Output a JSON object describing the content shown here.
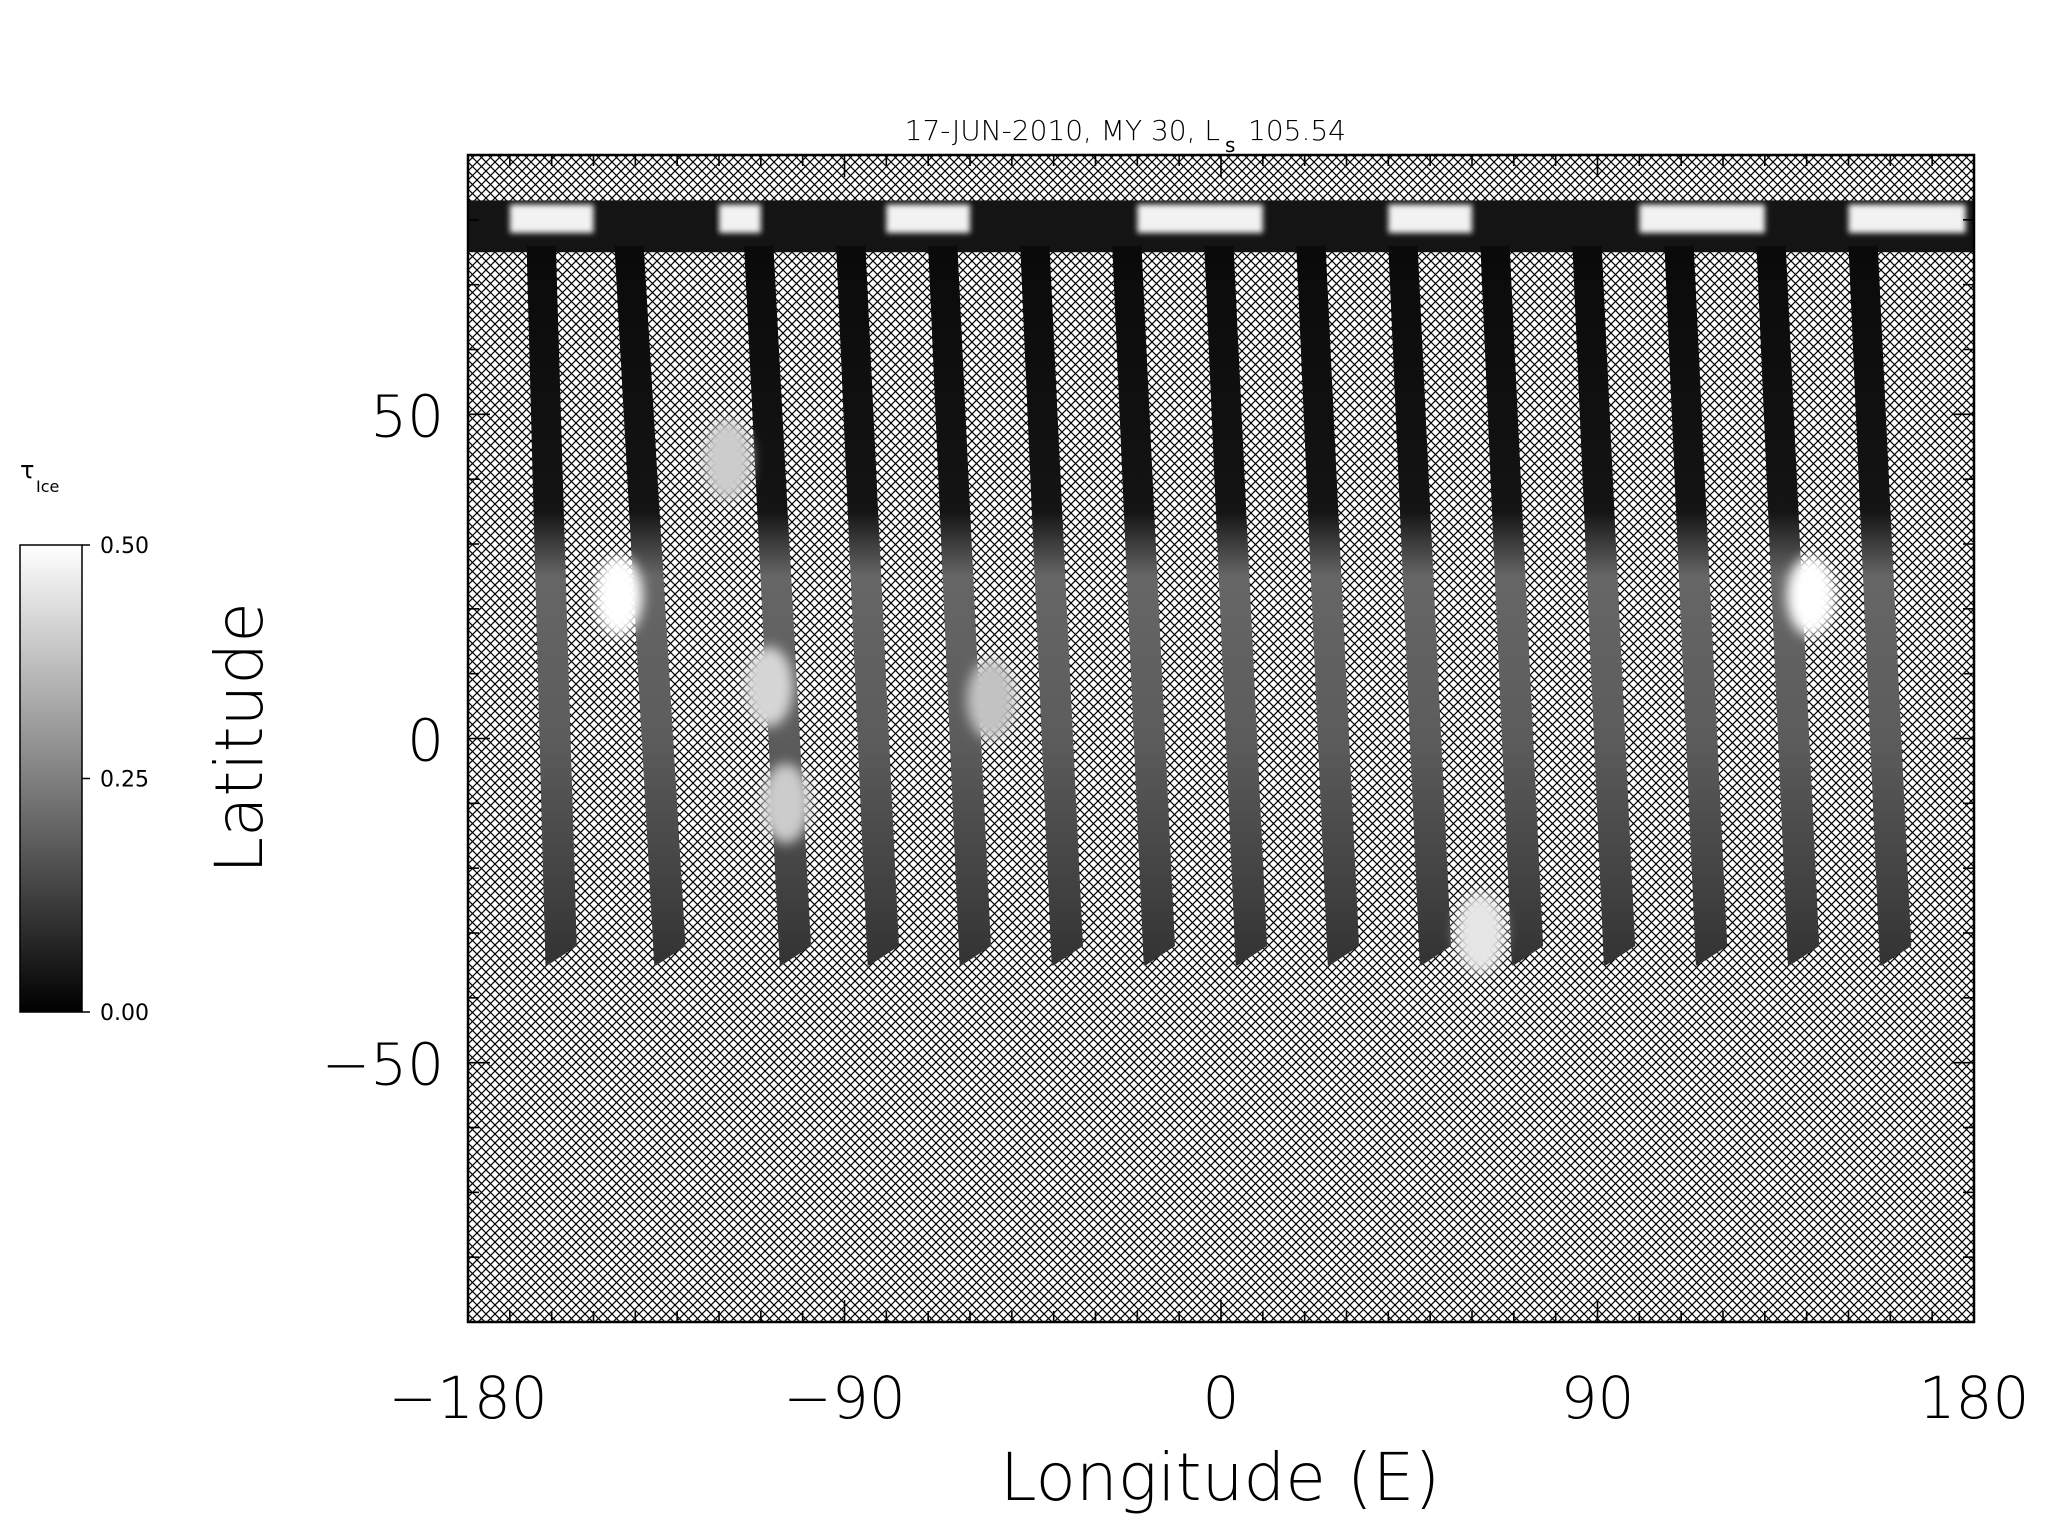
{
  "chart_data": {
    "type": "heatmap",
    "title": "17-JUN-2010, MY 30,  L",
    "title_subscript": "s",
    "title_value": "105.54",
    "xlabel": "Longitude (E)",
    "ylabel": "Latitude",
    "xlim": [
      -180,
      180
    ],
    "ylim": [
      -90,
      90
    ],
    "x_ticks": [
      -180,
      -90,
      0,
      90,
      180
    ],
    "x_tick_labels": [
      "−180",
      "−90",
      "0",
      "90",
      "180"
    ],
    "y_ticks": [
      -50,
      0,
      50
    ],
    "y_tick_labels": [
      "−50",
      "0",
      "50"
    ],
    "colorbar": {
      "label": "τ",
      "label_subscript": "Ice",
      "ticks": [
        0.0,
        0.25,
        0.5
      ],
      "tick_labels": [
        "0.00",
        "0.25",
        "0.50"
      ],
      "colormap": "grayscale",
      "low_color": "#000000",
      "high_color": "#ffffff"
    },
    "no_data_pattern": "crosshatch",
    "polar_cap_lat_range": [
      75,
      83
    ],
    "swaths": [
      {
        "lon_top": -166,
        "lon_bottom": -161,
        "peak_lat": 25
      },
      {
        "lon_top": -145,
        "lon_bottom": -135,
        "peak_lat": 22
      },
      {
        "lon_top": -114,
        "lon_bottom": -105,
        "peak_lat": 10
      },
      {
        "lon_top": -92,
        "lon_bottom": -84,
        "peak_lat": 12
      },
      {
        "lon_top": -70,
        "lon_bottom": -62,
        "peak_lat": 8
      },
      {
        "lon_top": -48,
        "lon_bottom": -40,
        "peak_lat": 24
      },
      {
        "lon_top": -26,
        "lon_bottom": -18,
        "peak_lat": 22
      },
      {
        "lon_top": -4,
        "lon_bottom": 4,
        "peak_lat": 26
      },
      {
        "lon_top": 18,
        "lon_bottom": 26,
        "peak_lat": 20
      },
      {
        "lon_top": 40,
        "lon_bottom": 48,
        "peak_lat": -28
      },
      {
        "lon_top": 62,
        "lon_bottom": 70,
        "peak_lat": 22
      },
      {
        "lon_top": 84,
        "lon_bottom": 92,
        "peak_lat": 18
      },
      {
        "lon_top": 106,
        "lon_bottom": 114,
        "peak_lat": 22
      },
      {
        "lon_top": 128,
        "lon_bottom": 136,
        "peak_lat": 22
      },
      {
        "lon_top": 150,
        "lon_bottom": 158,
        "peak_lat": 18
      }
    ],
    "bright_spots": [
      {
        "lon": -144,
        "lat": 22,
        "tau": 0.5
      },
      {
        "lon": -118,
        "lat": 43,
        "tau": 0.4
      },
      {
        "lon": -108,
        "lat": 8,
        "tau": 0.42
      },
      {
        "lon": -104,
        "lat": -10,
        "tau": 0.4
      },
      {
        "lon": -55,
        "lat": 6,
        "tau": 0.38
      },
      {
        "lon": 62,
        "lat": -30,
        "tau": 0.45
      },
      {
        "lon": 141,
        "lat": 22,
        "tau": 0.5
      }
    ]
  }
}
